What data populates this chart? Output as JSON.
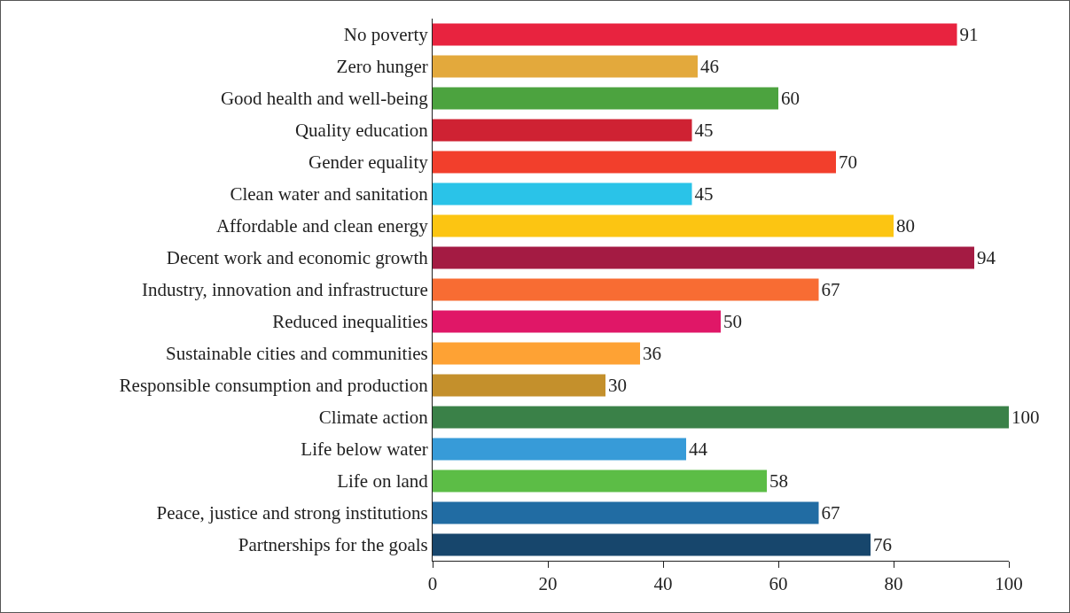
{
  "chart_data": {
    "type": "bar",
    "orientation": "horizontal",
    "categories": [
      "No poverty",
      "Zero hunger",
      "Good health and well-being",
      "Quality education",
      "Gender equality",
      "Clean water and sanitation",
      "Affordable and clean energy",
      "Decent work and economic growth",
      "Industry, innovation and infrastructure",
      "Reduced inequalities",
      "Sustainable cities and communities",
      "Responsible consumption and production",
      "Climate action",
      "Life below water",
      "Life on land",
      "Peace, justice and strong institutions",
      "Partnerships for the goals"
    ],
    "values": [
      91,
      46,
      60,
      45,
      70,
      45,
      80,
      94,
      67,
      50,
      36,
      30,
      100,
      44,
      58,
      67,
      76
    ],
    "colors": [
      "#e8233f",
      "#e3a93c",
      "#4ca33f",
      "#cf2233",
      "#f23f2c",
      "#2ac3e8",
      "#fcc512",
      "#a41b43",
      "#f86c33",
      "#e01767",
      "#fea234",
      "#c4902c",
      "#3a8148",
      "#379bd8",
      "#5cbd46",
      "#216ca3",
      "#17466c"
    ],
    "xlim": [
      0,
      100
    ],
    "xticks": [
      0,
      20,
      40,
      60,
      80,
      100
    ],
    "data_labels": true,
    "grid": false,
    "legend": false
  }
}
